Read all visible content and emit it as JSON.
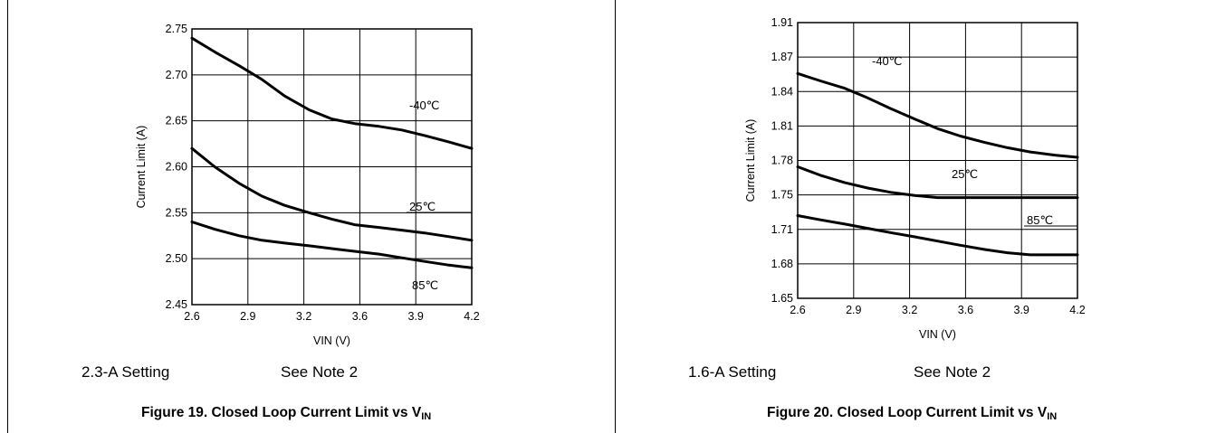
{
  "chart_data": [
    {
      "type": "line",
      "xlabel": "VIN (V)",
      "ylabel": "Current Limit (A)",
      "xlim": [
        2.6,
        4.2
      ],
      "ylim": [
        2.45,
        2.75
      ],
      "xticks": [
        "2.6",
        "2.9",
        "3.2",
        "3.6",
        "3.9",
        "4.2"
      ],
      "yticks": [
        "2.45",
        "2.50",
        "2.55",
        "2.60",
        "2.65",
        "2.70",
        "2.75"
      ],
      "grid": true,
      "series": [
        {
          "name": "-40℃",
          "x": [
            2.6,
            2.73,
            2.87,
            3.0,
            3.13,
            3.27,
            3.4,
            3.53,
            3.67,
            3.8,
            3.93,
            4.07,
            4.2
          ],
          "y": [
            2.74,
            2.725,
            2.71,
            2.695,
            2.677,
            2.662,
            2.652,
            2.647,
            2.644,
            2.64,
            2.634,
            2.627,
            2.62
          ]
        },
        {
          "name": "25℃",
          "x": [
            2.6,
            2.73,
            2.87,
            3.0,
            3.13,
            3.27,
            3.4,
            3.53,
            3.67,
            3.8,
            3.93,
            4.07,
            4.2
          ],
          "y": [
            2.62,
            2.6,
            2.582,
            2.568,
            2.558,
            2.55,
            2.543,
            2.537,
            2.534,
            2.531,
            2.528,
            2.524,
            2.52
          ]
        },
        {
          "name": "85℃",
          "x": [
            2.6,
            2.73,
            2.87,
            3.0,
            3.13,
            3.27,
            3.4,
            3.53,
            3.67,
            3.8,
            3.93,
            4.07,
            4.2
          ],
          "y": [
            2.54,
            2.532,
            2.525,
            2.52,
            2.517,
            2.514,
            2.511,
            2.508,
            2.505,
            2.501,
            2.497,
            2.493,
            2.49
          ]
        }
      ],
      "series_labels": {
        "-40": "-40℃",
        "25": "25℃",
        "85": "85℃"
      },
      "setting": "2.3-A Setting",
      "note": "See Note 2",
      "caption": "Figure 19. Closed Loop Current Limit vs V",
      "caption_sub": "IN"
    },
    {
      "type": "line",
      "xlabel": "VIN (V)",
      "ylabel": "Current Limit (A)",
      "xlim": [
        2.6,
        4.2
      ],
      "ylim": [
        1.65,
        1.91
      ],
      "xticks": [
        "2.6",
        "2.9",
        "3.2",
        "3.6",
        "3.9",
        "4.2"
      ],
      "yticks": [
        "1.65",
        "1.68",
        "1.71",
        "1.75",
        "1.78",
        "1.81",
        "1.84",
        "1.87",
        "1.91"
      ],
      "grid": true,
      "series": [
        {
          "name": "-40℃",
          "x": [
            2.6,
            2.73,
            2.87,
            3.0,
            3.13,
            3.27,
            3.4,
            3.53,
            3.67,
            3.8,
            3.93,
            4.07,
            4.2
          ],
          "y": [
            1.862,
            1.855,
            1.848,
            1.839,
            1.829,
            1.819,
            1.81,
            1.803,
            1.797,
            1.792,
            1.788,
            1.785,
            1.783
          ]
        },
        {
          "name": "25℃",
          "x": [
            2.6,
            2.73,
            2.87,
            3.0,
            3.13,
            3.27,
            3.4,
            3.53,
            3.67,
            3.8,
            3.93,
            4.07,
            4.2
          ],
          "y": [
            1.774,
            1.766,
            1.759,
            1.754,
            1.75,
            1.747,
            1.745,
            1.745,
            1.745,
            1.745,
            1.745,
            1.745,
            1.745
          ]
        },
        {
          "name": "85℃",
          "x": [
            2.6,
            2.73,
            2.87,
            3.0,
            3.13,
            3.27,
            3.4,
            3.53,
            3.67,
            3.8,
            3.93,
            4.07,
            4.2
          ],
          "y": [
            1.728,
            1.724,
            1.72,
            1.716,
            1.712,
            1.708,
            1.704,
            1.7,
            1.696,
            1.693,
            1.691,
            1.691,
            1.691
          ]
        }
      ],
      "series_labels": {
        "-40": "-40℃",
        "25": "25℃",
        "85": "85℃"
      },
      "setting": "1.6-A Setting",
      "note": "See Note 2",
      "caption": "Figure 20. Closed Loop Current Limit vs V",
      "caption_sub": "IN"
    }
  ]
}
